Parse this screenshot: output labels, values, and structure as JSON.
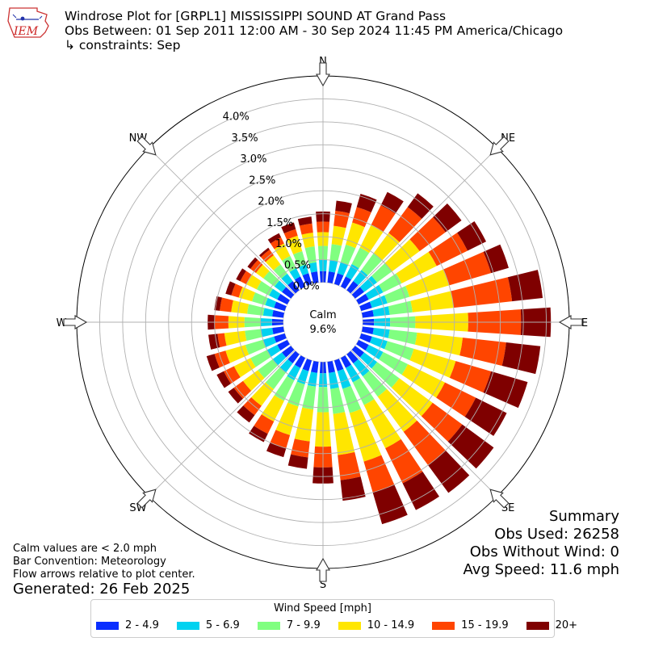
{
  "header": {
    "logo_text": "IEM",
    "title_line1": "Windrose Plot for [GRPL1] MISSISSIPPI SOUND  AT Grand Pass",
    "title_line2": "Obs Between: 01 Sep 2011 12:00 AM - 30 Sep 2024 11:45 PM America/Chicago",
    "title_line3": "↳ constraints: Sep"
  },
  "summary": {
    "heading": "Summary",
    "obs_used": "Obs Used: 26258",
    "obs_without_wind": "Obs Without Wind: 0",
    "avg_speed": "Avg Speed: 11.6 mph"
  },
  "notes": {
    "calm_def": "Calm values are < 2.0 mph",
    "bar_convention": "Bar Convention: Meteorology",
    "flow_arrows": "Flow arrows relative to plot center.",
    "generated": "Generated: 26 Feb 2025"
  },
  "legend": {
    "title": "Wind Speed [mph]"
  },
  "chart_data": {
    "type": "windrose",
    "calm_label": "Calm",
    "calm_value": "9.6%",
    "compass_labels": [
      "N",
      "NE",
      "E",
      "SE",
      "S",
      "SW",
      "W",
      "NW"
    ],
    "radial_ticks": [
      "0.0%",
      "0.5%",
      "1.0%",
      "1.5%",
      "2.0%",
      "2.5%",
      "3.0%",
      "3.5%",
      "4.0%"
    ],
    "radial_values": [
      0,
      0.5,
      1.0,
      1.5,
      2.0,
      2.5,
      3.0,
      3.5,
      4.0
    ],
    "rmax": 4.5,
    "directions_deg": [
      0,
      10,
      20,
      30,
      40,
      50,
      60,
      70,
      80,
      90,
      100,
      110,
      120,
      130,
      140,
      150,
      160,
      170,
      180,
      190,
      200,
      210,
      220,
      230,
      240,
      250,
      260,
      270,
      280,
      290,
      300,
      310,
      320,
      330,
      340,
      350
    ],
    "bins": [
      {
        "name": "2 - 4.9",
        "color": "#0a2eff"
      },
      {
        "name": "5 - 6.9",
        "color": "#00d2f0"
      },
      {
        "name": "7 - 9.9",
        "color": "#80ff80"
      },
      {
        "name": "10 - 14.9",
        "color": "#ffe600"
      },
      {
        "name": "15 - 19.9",
        "color": "#ff4500"
      },
      {
        "name": "20+",
        "color": "#7f0000"
      }
    ],
    "cumulative_percent": [
      [
        0.25,
        0.5,
        0.8,
        1.1,
        1.33,
        1.55
      ],
      [
        0.25,
        0.5,
        0.85,
        1.25,
        1.58,
        1.8
      ],
      [
        0.25,
        0.5,
        0.9,
        1.4,
        1.75,
        2.05
      ],
      [
        0.25,
        0.55,
        0.95,
        1.5,
        1.98,
        2.3
      ],
      [
        0.25,
        0.55,
        1.0,
        1.55,
        2.25,
        2.62
      ],
      [
        0.25,
        0.6,
        1.0,
        1.75,
        2.45,
        2.88
      ],
      [
        0.25,
        0.6,
        1.05,
        1.9,
        2.65,
        3.1
      ],
      [
        0.25,
        0.6,
        1.1,
        2.0,
        2.95,
        3.35
      ],
      [
        0.25,
        0.6,
        1.1,
        2.0,
        3.28,
        3.95
      ],
      [
        0.25,
        0.6,
        1.15,
        2.3,
        3.45,
        4.1
      ],
      [
        0.25,
        0.6,
        1.2,
        2.2,
        3.15,
        3.9
      ],
      [
        0.25,
        0.6,
        1.2,
        2.15,
        2.95,
        3.78
      ],
      [
        0.25,
        0.6,
        1.2,
        2.1,
        2.85,
        3.6
      ],
      [
        0.25,
        0.6,
        1.2,
        2.1,
        2.9,
        3.75
      ],
      [
        0.25,
        0.6,
        1.15,
        2.1,
        3.0,
        3.75
      ],
      [
        0.25,
        0.6,
        1.15,
        2.2,
        3.05,
        3.7
      ],
      [
        0.25,
        0.65,
        1.2,
        2.3,
        3.0,
        3.72
      ],
      [
        0.25,
        0.6,
        1.15,
        2.05,
        2.6,
        3.05
      ],
      [
        0.25,
        0.55,
        1.1,
        1.85,
        2.3,
        2.65
      ],
      [
        0.25,
        0.55,
        1.05,
        1.75,
        2.1,
        2.35
      ],
      [
        0.25,
        0.55,
        1.05,
        1.7,
        2.0,
        2.2
      ],
      [
        0.25,
        0.55,
        1.05,
        1.55,
        1.85,
        2.05
      ],
      [
        0.25,
        0.5,
        0.95,
        1.4,
        1.65,
        1.85
      ],
      [
        0.25,
        0.5,
        0.9,
        1.3,
        1.55,
        1.7
      ],
      [
        0.25,
        0.5,
        0.9,
        1.3,
        1.55,
        1.72
      ],
      [
        0.25,
        0.5,
        0.9,
        1.35,
        1.6,
        1.78
      ],
      [
        0.25,
        0.5,
        0.85,
        1.3,
        1.45,
        1.65
      ],
      [
        0.25,
        0.5,
        0.85,
        1.2,
        1.5,
        1.65
      ],
      [
        0.25,
        0.45,
        0.8,
        1.15,
        1.4,
        1.52
      ],
      [
        0.25,
        0.45,
        0.75,
        1.05,
        1.22,
        1.35
      ],
      [
        0.25,
        0.45,
        0.75,
        1.0,
        1.15,
        1.25
      ],
      [
        0.25,
        0.45,
        0.75,
        0.95,
        1.1,
        1.18
      ],
      [
        0.25,
        0.45,
        0.7,
        0.95,
        1.1,
        1.15
      ],
      [
        0.25,
        0.45,
        0.75,
        1.05,
        1.2,
        1.3
      ],
      [
        0.25,
        0.45,
        0.75,
        1.1,
        1.25,
        1.4
      ],
      [
        0.25,
        0.45,
        0.8,
        1.1,
        1.3,
        1.45
      ]
    ]
  }
}
